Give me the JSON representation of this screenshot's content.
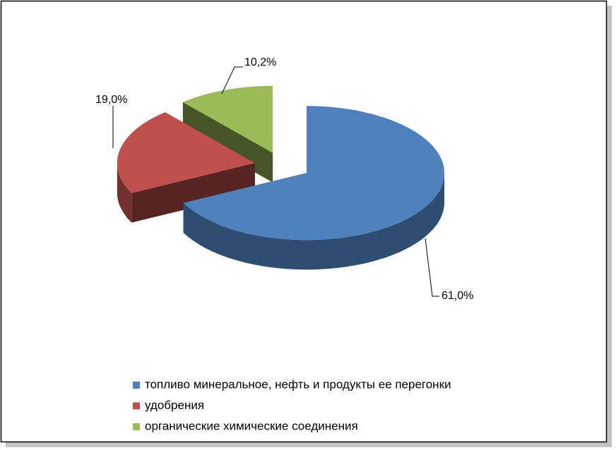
{
  "chart_data": {
    "type": "pie",
    "series": [
      {
        "name": "топливо минеральное, нефть и продукты ее перегонки",
        "color": "#4f81bd",
        "values": [
          61.0
        ],
        "value_labels": [
          "61,0%"
        ]
      },
      {
        "name": "удобрения",
        "color": "#c0504d",
        "values": [
          19.0
        ],
        "value_labels": [
          "19,0%"
        ]
      },
      {
        "name": "органические химические соединения",
        "color": "#9bbb59",
        "values": [
          10.2
        ],
        "value_labels": [
          "10,2%"
        ]
      }
    ],
    "legend": "bottom"
  }
}
